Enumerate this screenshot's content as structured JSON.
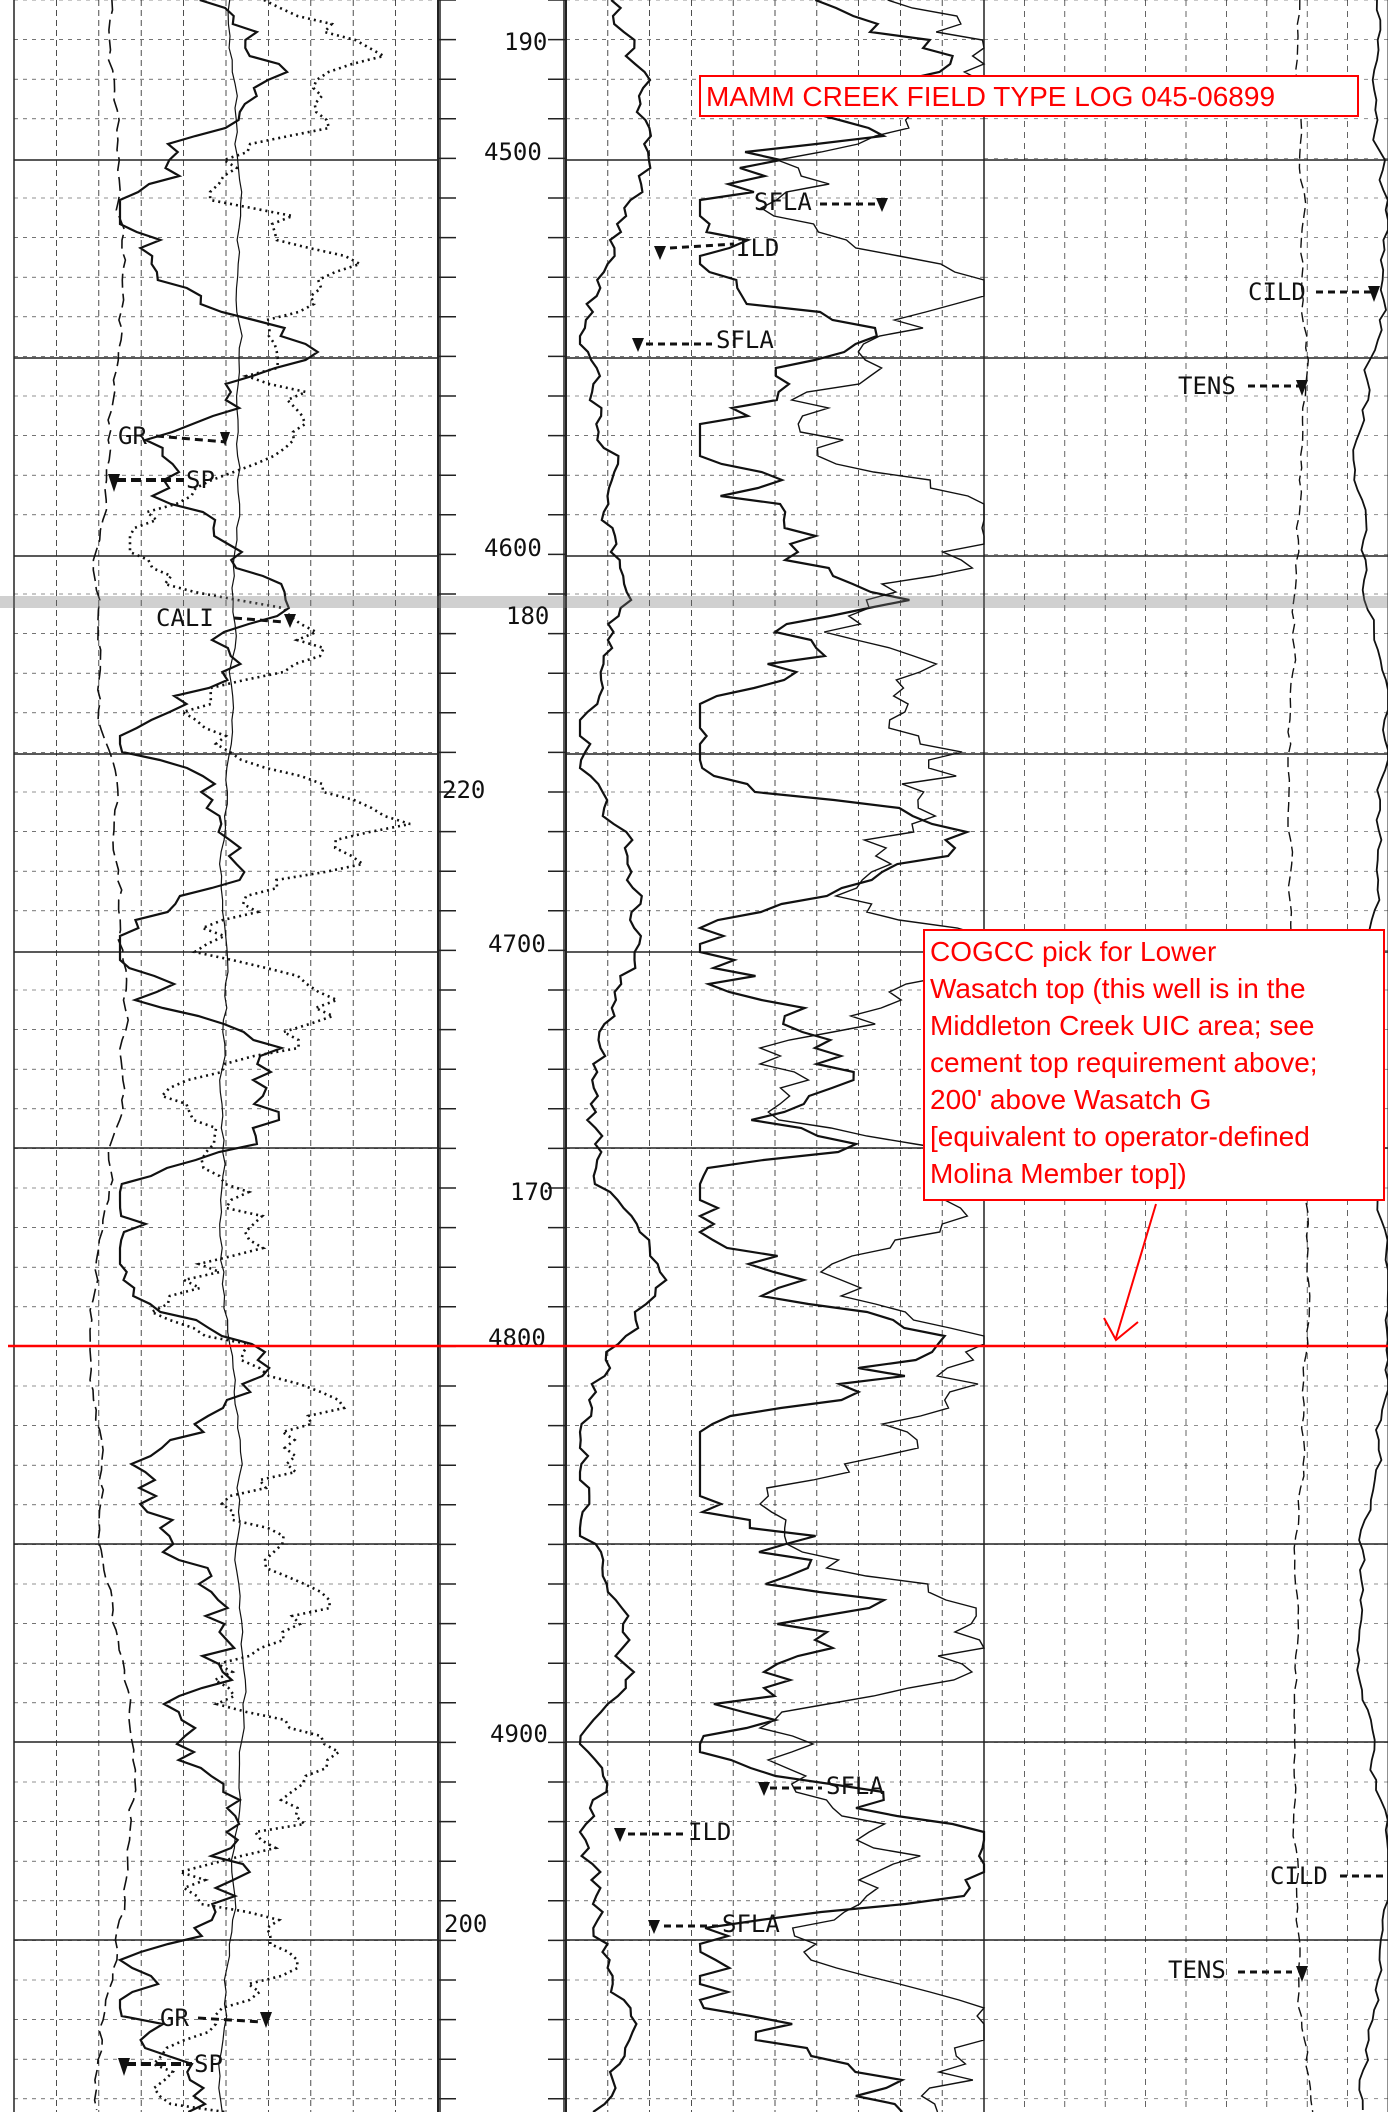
{
  "title": "MAMM CREEK FIELD TYPE LOG 045-06899",
  "annotation": {
    "lines": [
      "COGCC pick for Lower",
      "Wasatch top (this well is in the",
      "Middleton Creek UIC area; see",
      "cement top requirement above;",
      "200' above Wasatch G",
      "[equivalent to operator-defined",
      "Molina Member top])"
    ]
  },
  "depth_labels": [
    "4500",
    "4600",
    "4700",
    "4800",
    "4900"
  ],
  "scale_labels_track3": [
    "190",
    "180",
    "170"
  ],
  "scale_labels_track1": [
    "220",
    "200"
  ],
  "curve_labels": {
    "gr": "GR",
    "sp": "SP",
    "cali": "CALI",
    "sfla": "SFLA",
    "ild": "ILD",
    "cild": "CILD",
    "tens": "TENS"
  },
  "pick_depth": 4800,
  "colors": {
    "annotation": "#ff0000",
    "ink": "#111111",
    "grid": "#222222"
  }
}
